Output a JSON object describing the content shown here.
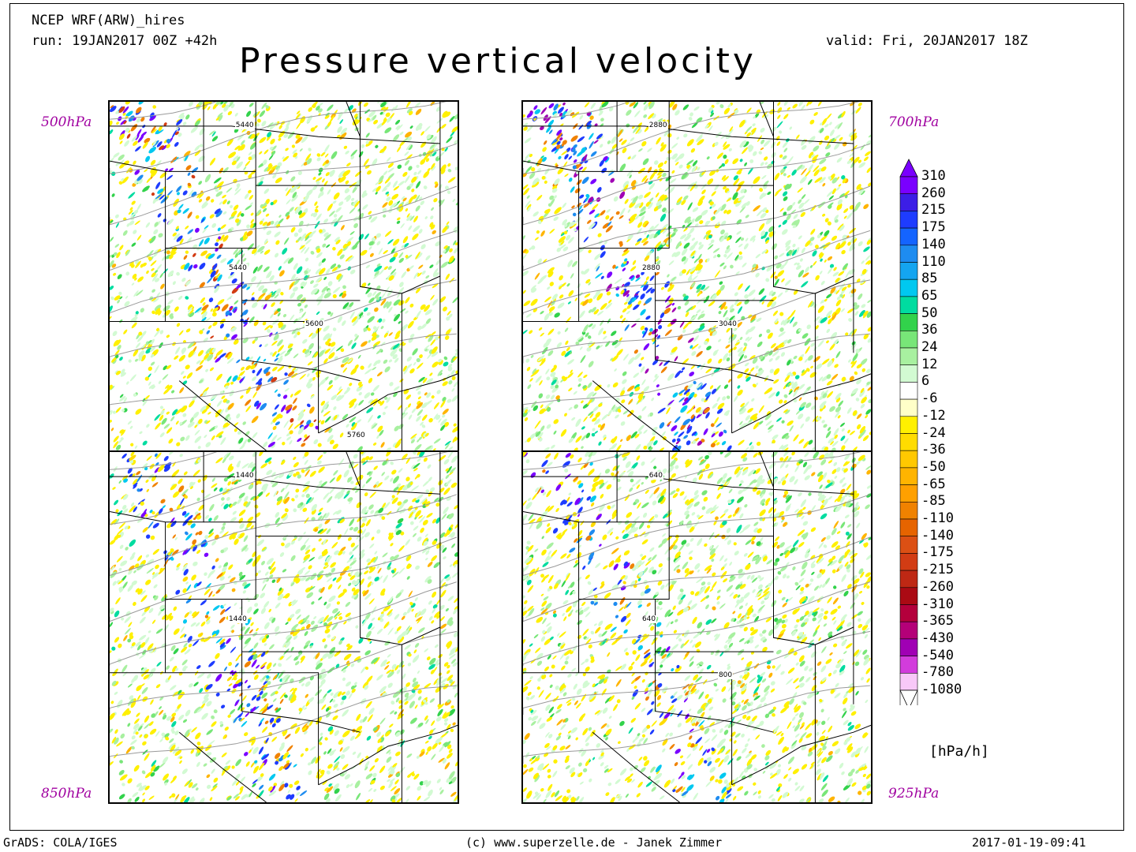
{
  "header": {
    "model": "NCEP WRF(ARW)_hires",
    "run": "run: 19JAN2017 00Z +42h",
    "valid": "valid: Fri, 20JAN2017 18Z",
    "title": "Pressure vertical velocity"
  },
  "panels": [
    {
      "level": "500hPa",
      "contours": [
        "5440",
        "5440",
        "5600",
        "5760"
      ]
    },
    {
      "level": "700hPa",
      "contours": [
        "2880",
        "2880",
        "3040"
      ]
    },
    {
      "level": "850hPa",
      "contours": [
        "1440",
        "1440"
      ]
    },
    {
      "level": "925hPa",
      "contours": [
        "640",
        "640",
        "800"
      ]
    }
  ],
  "legend": {
    "unit": "[hPa/h]",
    "entries": [
      {
        "label": "310",
        "color": "#7a00ff"
      },
      {
        "label": "260",
        "color": "#3c1ee6"
      },
      {
        "label": "215",
        "color": "#1e3cff"
      },
      {
        "label": "175",
        "color": "#1464ff"
      },
      {
        "label": "140",
        "color": "#1e8cf0"
      },
      {
        "label": "110",
        "color": "#14a5f0"
      },
      {
        "label": "85",
        "color": "#00c8f0"
      },
      {
        "label": "65",
        "color": "#00dca0"
      },
      {
        "label": "50",
        "color": "#32d24b"
      },
      {
        "label": "36",
        "color": "#78e678"
      },
      {
        "label": "24",
        "color": "#a8f0a0"
      },
      {
        "label": "12",
        "color": "#d2fad2"
      },
      {
        "label": "6",
        "color": "#ffffff"
      },
      {
        "label": "-6",
        "color": "#ffffc8"
      },
      {
        "label": "-12",
        "color": "#fff000"
      },
      {
        "label": "-24",
        "color": "#ffdc00"
      },
      {
        "label": "-36",
        "color": "#ffc800"
      },
      {
        "label": "-50",
        "color": "#ffb400"
      },
      {
        "label": "-65",
        "color": "#ffa000"
      },
      {
        "label": "-85",
        "color": "#f08200"
      },
      {
        "label": "-110",
        "color": "#e66400"
      },
      {
        "label": "-140",
        "color": "#dc5014"
      },
      {
        "label": "-175",
        "color": "#d23c14"
      },
      {
        "label": "-215",
        "color": "#be2814"
      },
      {
        "label": "-260",
        "color": "#aa0a14"
      },
      {
        "label": "-310",
        "color": "#b4003c"
      },
      {
        "label": "-365",
        "color": "#b40078"
      },
      {
        "label": "-430",
        "color": "#a000b4"
      },
      {
        "label": "-540",
        "color": "#d23cdc"
      },
      {
        "label": "-780",
        "color": "#f8c8f8"
      },
      {
        "label": "-1080",
        "color": "#ffffff"
      }
    ]
  },
  "footer": {
    "left": "GrADS: COLA/IGES",
    "center": "(c) www.superzelle.de - Janek Zimmer",
    "right": "2017-01-19-09:41"
  }
}
